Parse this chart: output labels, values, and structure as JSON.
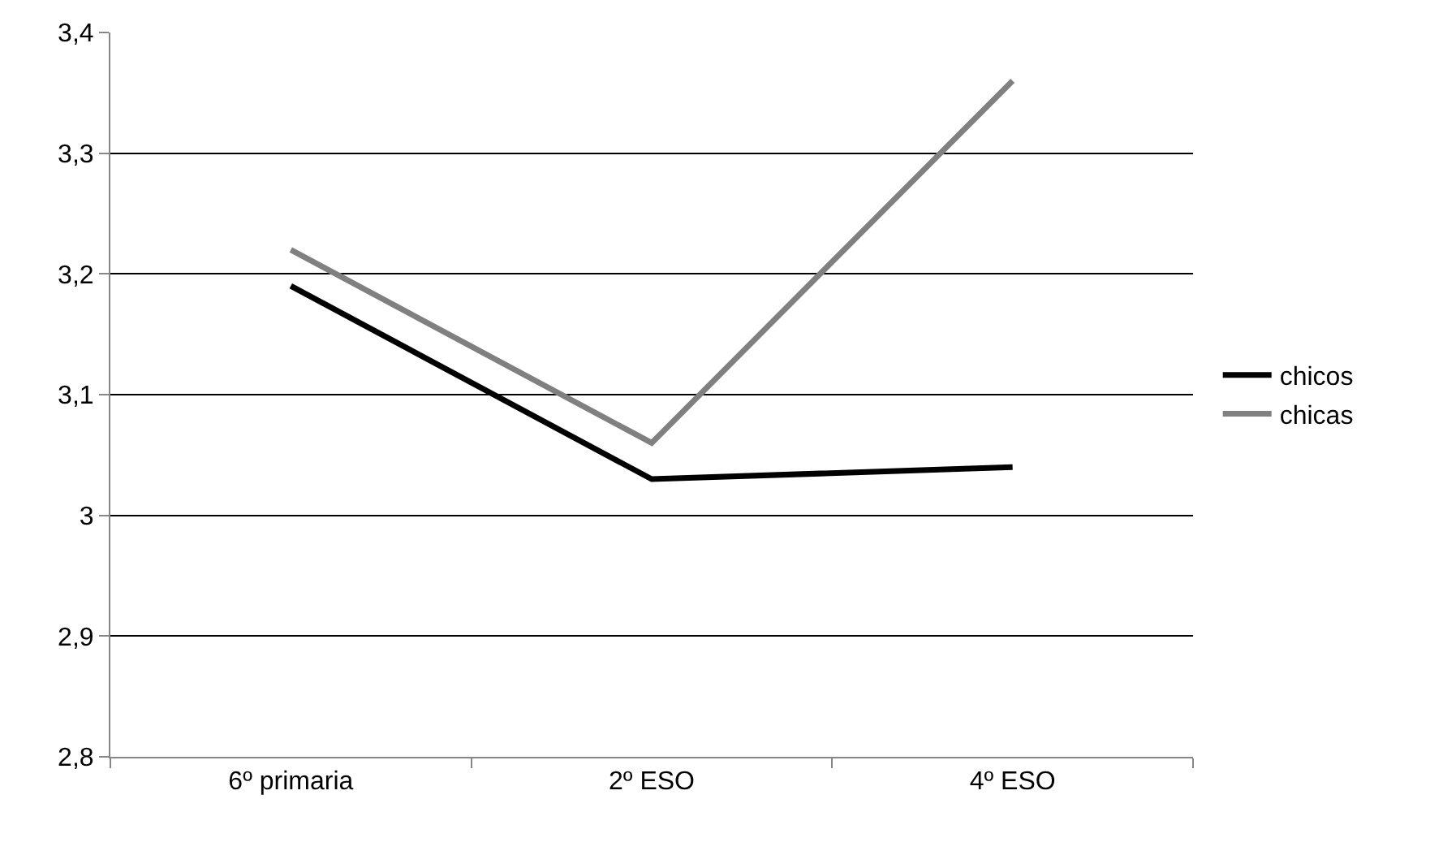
{
  "chart_data": {
    "type": "line",
    "categories": [
      "6º primaria",
      "2º ESO",
      "4º ESO"
    ],
    "series": [
      {
        "name": "chicos",
        "color": "#000000",
        "values": [
          3.19,
          3.03,
          3.04
        ]
      },
      {
        "name": "chicas",
        "color": "#808080",
        "values": [
          3.22,
          3.06,
          3.36
        ]
      }
    ],
    "ylim": [
      2.8,
      3.4
    ],
    "yticks": [
      {
        "value": 2.8,
        "label": "2,8"
      },
      {
        "value": 2.9,
        "label": "2,9"
      },
      3,
      {
        "value": 3.1,
        "label": "3,1"
      },
      {
        "value": 3.2,
        "label": "3,2"
      },
      {
        "value": 3.3,
        "label": "3,3"
      },
      {
        "value": 3.4,
        "label": "3,4"
      }
    ],
    "grid": "y",
    "legend": "right",
    "marker": "none",
    "line_style": "solid"
  }
}
